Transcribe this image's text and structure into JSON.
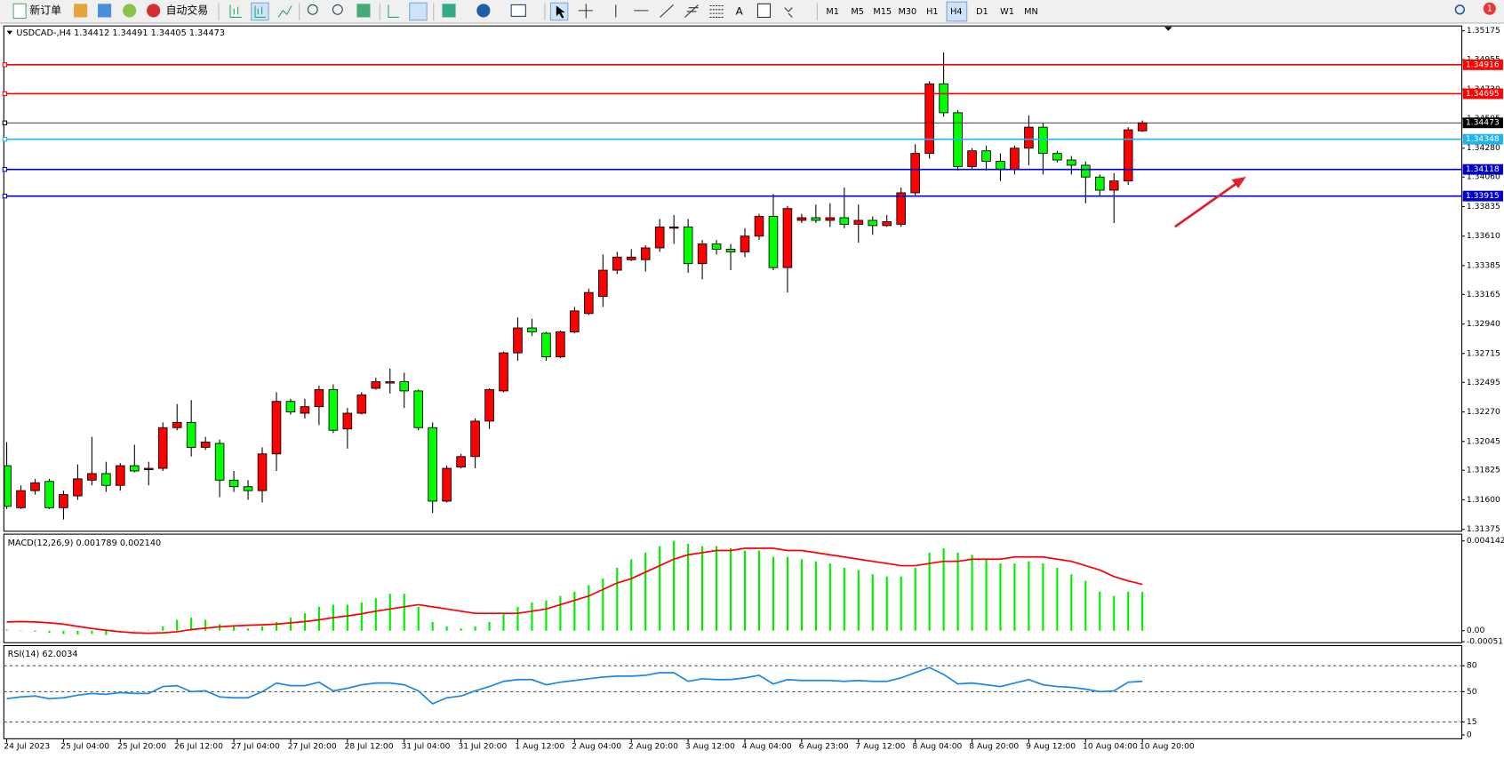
{
  "toolbar": {
    "new_order": "新订单",
    "auto_trading": "自动交易",
    "text_tool": "A",
    "timeframes": [
      "M1",
      "M5",
      "M15",
      "M30",
      "H1",
      "H4",
      "D1",
      "W1",
      "MN"
    ],
    "notifications": 1
  },
  "chart_data": [
    {
      "type": "candlestick",
      "title": "USDCAD-,H4  1.34412 1.34491 1.34405 1.34473",
      "up_color": "#ff0000",
      "down_color": "#00ff00",
      "categories": [
        "24 Jul 2023",
        null,
        null,
        null,
        "25 Jul 04:00",
        null,
        null,
        null,
        "25 Jul 20:00",
        null,
        null,
        null,
        "26 Jul 12:00",
        null,
        null,
        null,
        "27 Jul 04:00",
        null,
        null,
        null,
        "27 Jul 20:00",
        null,
        null,
        null,
        "28 Jul 12:00",
        null,
        null,
        null,
        "31 Jul 04:00",
        null,
        null,
        null,
        "31 Jul 20:00",
        null,
        null,
        null,
        "1 Aug 12:00",
        null,
        null,
        null,
        "2 Aug 04:00",
        null,
        null,
        null,
        "2 Aug 20:00",
        null,
        null,
        null,
        "3 Aug 12:00",
        null,
        null,
        null,
        "4 Aug 04:00",
        null,
        null,
        null,
        "6 Aug 23:00",
        null,
        null,
        null,
        "7 Aug 12:00",
        null,
        null,
        null,
        "8 Aug 04:00",
        null,
        null,
        null,
        "8 Aug 20:00",
        null,
        null,
        null,
        "9 Aug 12:00",
        null,
        null,
        null,
        "10 Aug 04:00",
        null,
        null,
        null,
        "10 Aug 20:00"
      ],
      "open": [
        1.3186,
        1.3154,
        1.3167,
        1.3174,
        1.3154,
        1.3163,
        1.3175,
        1.318,
        1.3171,
        1.3186,
        1.3183,
        1.3184,
        1.3215,
        1.3219,
        1.32,
        1.3203,
        1.3175,
        1.317,
        1.3167,
        1.3195,
        1.3235,
        1.3226,
        1.3231,
        1.3244,
        1.3214,
        1.3226,
        1.3245,
        1.3249,
        1.325,
        1.3243,
        1.3215,
        1.3159,
        1.3185,
        1.3193,
        1.322,
        1.3243,
        1.3272,
        1.3291,
        1.3287,
        1.3269,
        1.3288,
        1.3302,
        1.3315,
        1.3335,
        1.3343,
        1.3343,
        1.3352,
        1.3367,
        1.3368,
        1.334,
        1.3355,
        1.3351,
        1.3349,
        1.3361,
        1.3376,
        1.3337,
        1.3373,
        1.3375,
        1.3373,
        1.3375,
        1.337,
        1.3373,
        1.3369,
        1.337,
        1.3394,
        1.3424,
        1.3477,
        1.3455,
        1.3414,
        1.3426,
        1.3418,
        1.3412,
        1.3428,
        1.3444,
        1.3424,
        1.3419,
        1.3415,
        1.3406,
        1.3396,
        1.3403,
        1.34412
      ],
      "high": [
        1.3204,
        1.3171,
        1.3176,
        1.3176,
        1.3167,
        1.3187,
        1.3208,
        1.3189,
        1.3188,
        1.3202,
        1.3189,
        1.3219,
        1.3233,
        1.3236,
        1.3208,
        1.3206,
        1.3182,
        1.3175,
        1.32,
        1.3242,
        1.3237,
        1.3237,
        1.3247,
        1.3248,
        1.323,
        1.3242,
        1.3253,
        1.326,
        1.3257,
        1.3244,
        1.3219,
        1.3186,
        1.3195,
        1.3222,
        1.3245,
        1.3273,
        1.3299,
        1.3298,
        1.3288,
        1.3289,
        1.3307,
        1.3321,
        1.3347,
        1.3349,
        1.3351,
        1.3354,
        1.3374,
        1.3377,
        1.3374,
        1.3358,
        1.3358,
        1.3355,
        1.3367,
        1.3378,
        1.3393,
        1.3384,
        1.3378,
        1.3385,
        1.3386,
        1.3398,
        1.3385,
        1.3376,
        1.3377,
        1.3398,
        1.3431,
        1.3479,
        1.3501,
        1.3457,
        1.3428,
        1.343,
        1.3424,
        1.343,
        1.3453,
        1.3447,
        1.3426,
        1.3422,
        1.3418,
        1.3408,
        1.3409,
        1.3444,
        1.34491
      ],
      "low": [
        1.3153,
        1.3153,
        1.3164,
        1.3153,
        1.3145,
        1.316,
        1.3171,
        1.3166,
        1.3167,
        1.3181,
        1.3171,
        1.3182,
        1.3213,
        1.3193,
        1.3198,
        1.3162,
        1.3166,
        1.316,
        1.3158,
        1.3182,
        1.3225,
        1.3222,
        1.3217,
        1.3211,
        1.3199,
        1.3225,
        1.3244,
        1.3241,
        1.323,
        1.3213,
        1.315,
        1.3158,
        1.3184,
        1.3184,
        1.3214,
        1.3242,
        1.3266,
        1.3285,
        1.3266,
        1.3268,
        1.3287,
        1.3301,
        1.3307,
        1.3332,
        1.3342,
        1.3334,
        1.3349,
        1.3355,
        1.3333,
        1.3328,
        1.3347,
        1.3335,
        1.3345,
        1.3358,
        1.3335,
        1.3318,
        1.3371,
        1.3371,
        1.3368,
        1.3367,
        1.3356,
        1.3362,
        1.3368,
        1.3368,
        1.3391,
        1.342,
        1.3452,
        1.3411,
        1.3412,
        1.3411,
        1.3403,
        1.3408,
        1.3415,
        1.3408,
        1.3417,
        1.3408,
        1.3386,
        1.3392,
        1.3371,
        1.34,
        1.34405
      ],
      "close": [
        1.3155,
        1.3167,
        1.3173,
        1.3154,
        1.3164,
        1.3176,
        1.318,
        1.3171,
        1.3186,
        1.3182,
        1.3184,
        1.3215,
        1.3219,
        1.32,
        1.3204,
        1.3175,
        1.317,
        1.3167,
        1.3195,
        1.3235,
        1.3227,
        1.3231,
        1.3244,
        1.3213,
        1.3226,
        1.324,
        1.325,
        1.325,
        1.3243,
        1.3215,
        1.3159,
        1.3184,
        1.3193,
        1.322,
        1.3244,
        1.3272,
        1.3291,
        1.3288,
        1.3269,
        1.3288,
        1.3304,
        1.3318,
        1.3335,
        1.3345,
        1.3345,
        1.3352,
        1.3368,
        1.3368,
        1.334,
        1.3355,
        1.3351,
        1.3349,
        1.3361,
        1.3376,
        1.3337,
        1.3382,
        1.3375,
        1.3373,
        1.3375,
        1.337,
        1.3373,
        1.3369,
        1.3372,
        1.3394,
        1.3424,
        1.3477,
        1.3455,
        1.3414,
        1.3426,
        1.3418,
        1.3412,
        1.3428,
        1.3444,
        1.3424,
        1.3419,
        1.3415,
        1.3406,
        1.3396,
        1.3403,
        1.3442,
        1.34473
      ],
      "ylim": [
        1.31375,
        1.35175
      ],
      "yticks": [
        1.31375,
        {
          "value": 1.316,
          "label": "1.31600"
        },
        1.31825,
        1.32045,
        {
          "value": 1.3227,
          "label": "1.32270"
        },
        1.32495,
        1.32715,
        {
          "value": 1.3294,
          "label": "1.32940"
        },
        1.33165,
        1.33385,
        {
          "value": 1.3361,
          "label": "1.33610"
        },
        1.33835,
        {
          "value": 1.3406,
          "label": "1.34060"
        },
        {
          "value": 1.3428,
          "label": "1.34280"
        },
        1.34505,
        {
          "value": 1.3473,
          "label": "1.34730"
        },
        1.34955,
        1.35175
      ],
      "hlines": [
        {
          "value": 1.34916,
          "color": "#ff0000"
        },
        {
          "value": 1.34695,
          "color": "#ff0000"
        },
        {
          "value": 1.34473,
          "color": "#000000"
        },
        {
          "value": 1.34348,
          "color": "#1fb4f0"
        },
        {
          "value": 1.34118,
          "color": "#0000cd"
        },
        {
          "value": 1.33915,
          "color": "#0000cd"
        }
      ]
    },
    {
      "type": "combo",
      "title": "MACD(12,26,9) 0.001789 0.002140",
      "series": [
        {
          "type": "bar",
          "color": "#00ee00",
          "values": [
            5e-05,
            -2e-05,
            -5e-05,
            -0.0001,
            -0.00015,
            -0.00018,
            -0.00015,
            -0.0002,
            -8e-05,
            -2e-05,
            2e-05,
            0.0002,
            0.0005,
            0.0006,
            0.0005,
            0.0003,
            0.0002,
            0.0001,
            0.0002,
            0.0004,
            0.0006,
            0.0008,
            0.0011,
            0.0012,
            0.0012,
            0.0013,
            0.0015,
            0.0017,
            0.0017,
            0.0011,
            0.0004,
            0.0002,
            0.0001,
            0.0002,
            0.0004,
            0.0008,
            0.0011,
            0.0013,
            0.0014,
            0.0016,
            0.0018,
            0.0021,
            0.0024,
            0.0029,
            0.0033,
            0.0036,
            0.0039,
            0.004142,
            0.004,
            0.0039,
            0.0039,
            0.0038,
            0.0037,
            0.0037,
            0.0034,
            0.0034,
            0.0033,
            0.0032,
            0.0031,
            0.0029,
            0.0028,
            0.0026,
            0.0025,
            0.0025,
            0.0029,
            0.0036,
            0.0038,
            0.0036,
            0.0035,
            0.0033,
            0.0031,
            0.0031,
            0.0032,
            0.0031,
            0.0029,
            0.0026,
            0.0023,
            0.0018,
            0.0016,
            0.0018,
            0.001789
          ]
        },
        {
          "type": "line",
          "color": "#ff0000",
          "values": [
            0.0004,
            0.00042,
            0.0004,
            0.00036,
            0.0003,
            0.0002,
            0.0001,
            2e-05,
            -5e-05,
            -0.0001,
            -0.00012,
            -0.0001,
            -5e-05,
            5e-05,
            0.00012,
            0.00018,
            0.00022,
            0.00025,
            0.00027,
            0.0003,
            0.00036,
            0.00042,
            0.0005,
            0.0006,
            0.00068,
            0.00078,
            0.0009,
            0.001,
            0.0011,
            0.0012,
            0.0011,
            0.001,
            0.0009,
            0.0008,
            0.0008,
            0.0008,
            0.0008,
            0.0009,
            0.001,
            0.0012,
            0.0014,
            0.0016,
            0.0019,
            0.0022,
            0.0024,
            0.0027,
            0.003,
            0.0033,
            0.0035,
            0.0036,
            0.0037,
            0.0037,
            0.0038,
            0.0038,
            0.0038,
            0.0037,
            0.0037,
            0.0036,
            0.0035,
            0.0034,
            0.0033,
            0.0032,
            0.0031,
            0.003,
            0.003,
            0.0031,
            0.0032,
            0.0032,
            0.0033,
            0.0033,
            0.0033,
            0.0034,
            0.0034,
            0.0034,
            0.0033,
            0.0032,
            0.003,
            0.0028,
            0.0025,
            0.0023,
            0.00214
          ]
        }
      ],
      "ylim": [
        -0.000511,
        0.004142
      ],
      "yticks": [
        -0.000511,
        {
          "value": 0,
          "label": "0.00"
        },
        0.004142
      ]
    },
    {
      "type": "line",
      "title": "RSI(14) 62.0034",
      "series": [
        {
          "color": "#1e88e5",
          "values": [
            42,
            44,
            45,
            42,
            43,
            46,
            48,
            47,
            49,
            48,
            48,
            56,
            57,
            50,
            51,
            44,
            43,
            43,
            50,
            60,
            57,
            57,
            61,
            51,
            54,
            58,
            60,
            60,
            58,
            51,
            36,
            43,
            45,
            51,
            56,
            62,
            64,
            64,
            58,
            61,
            63,
            65,
            67,
            68,
            68,
            69,
            72,
            72,
            62,
            65,
            64,
            64,
            66,
            69,
            59,
            64,
            63,
            63,
            63,
            62,
            63,
            62,
            62,
            66,
            72,
            78,
            70,
            59,
            60,
            58,
            56,
            60,
            64,
            58,
            56,
            55,
            53,
            50,
            51,
            61,
            62.0034
          ]
        }
      ],
      "ylim": [
        0,
        100
      ],
      "yticks": [
        0,
        15,
        50,
        80
      ],
      "levels": [
        15,
        50,
        80
      ]
    }
  ]
}
